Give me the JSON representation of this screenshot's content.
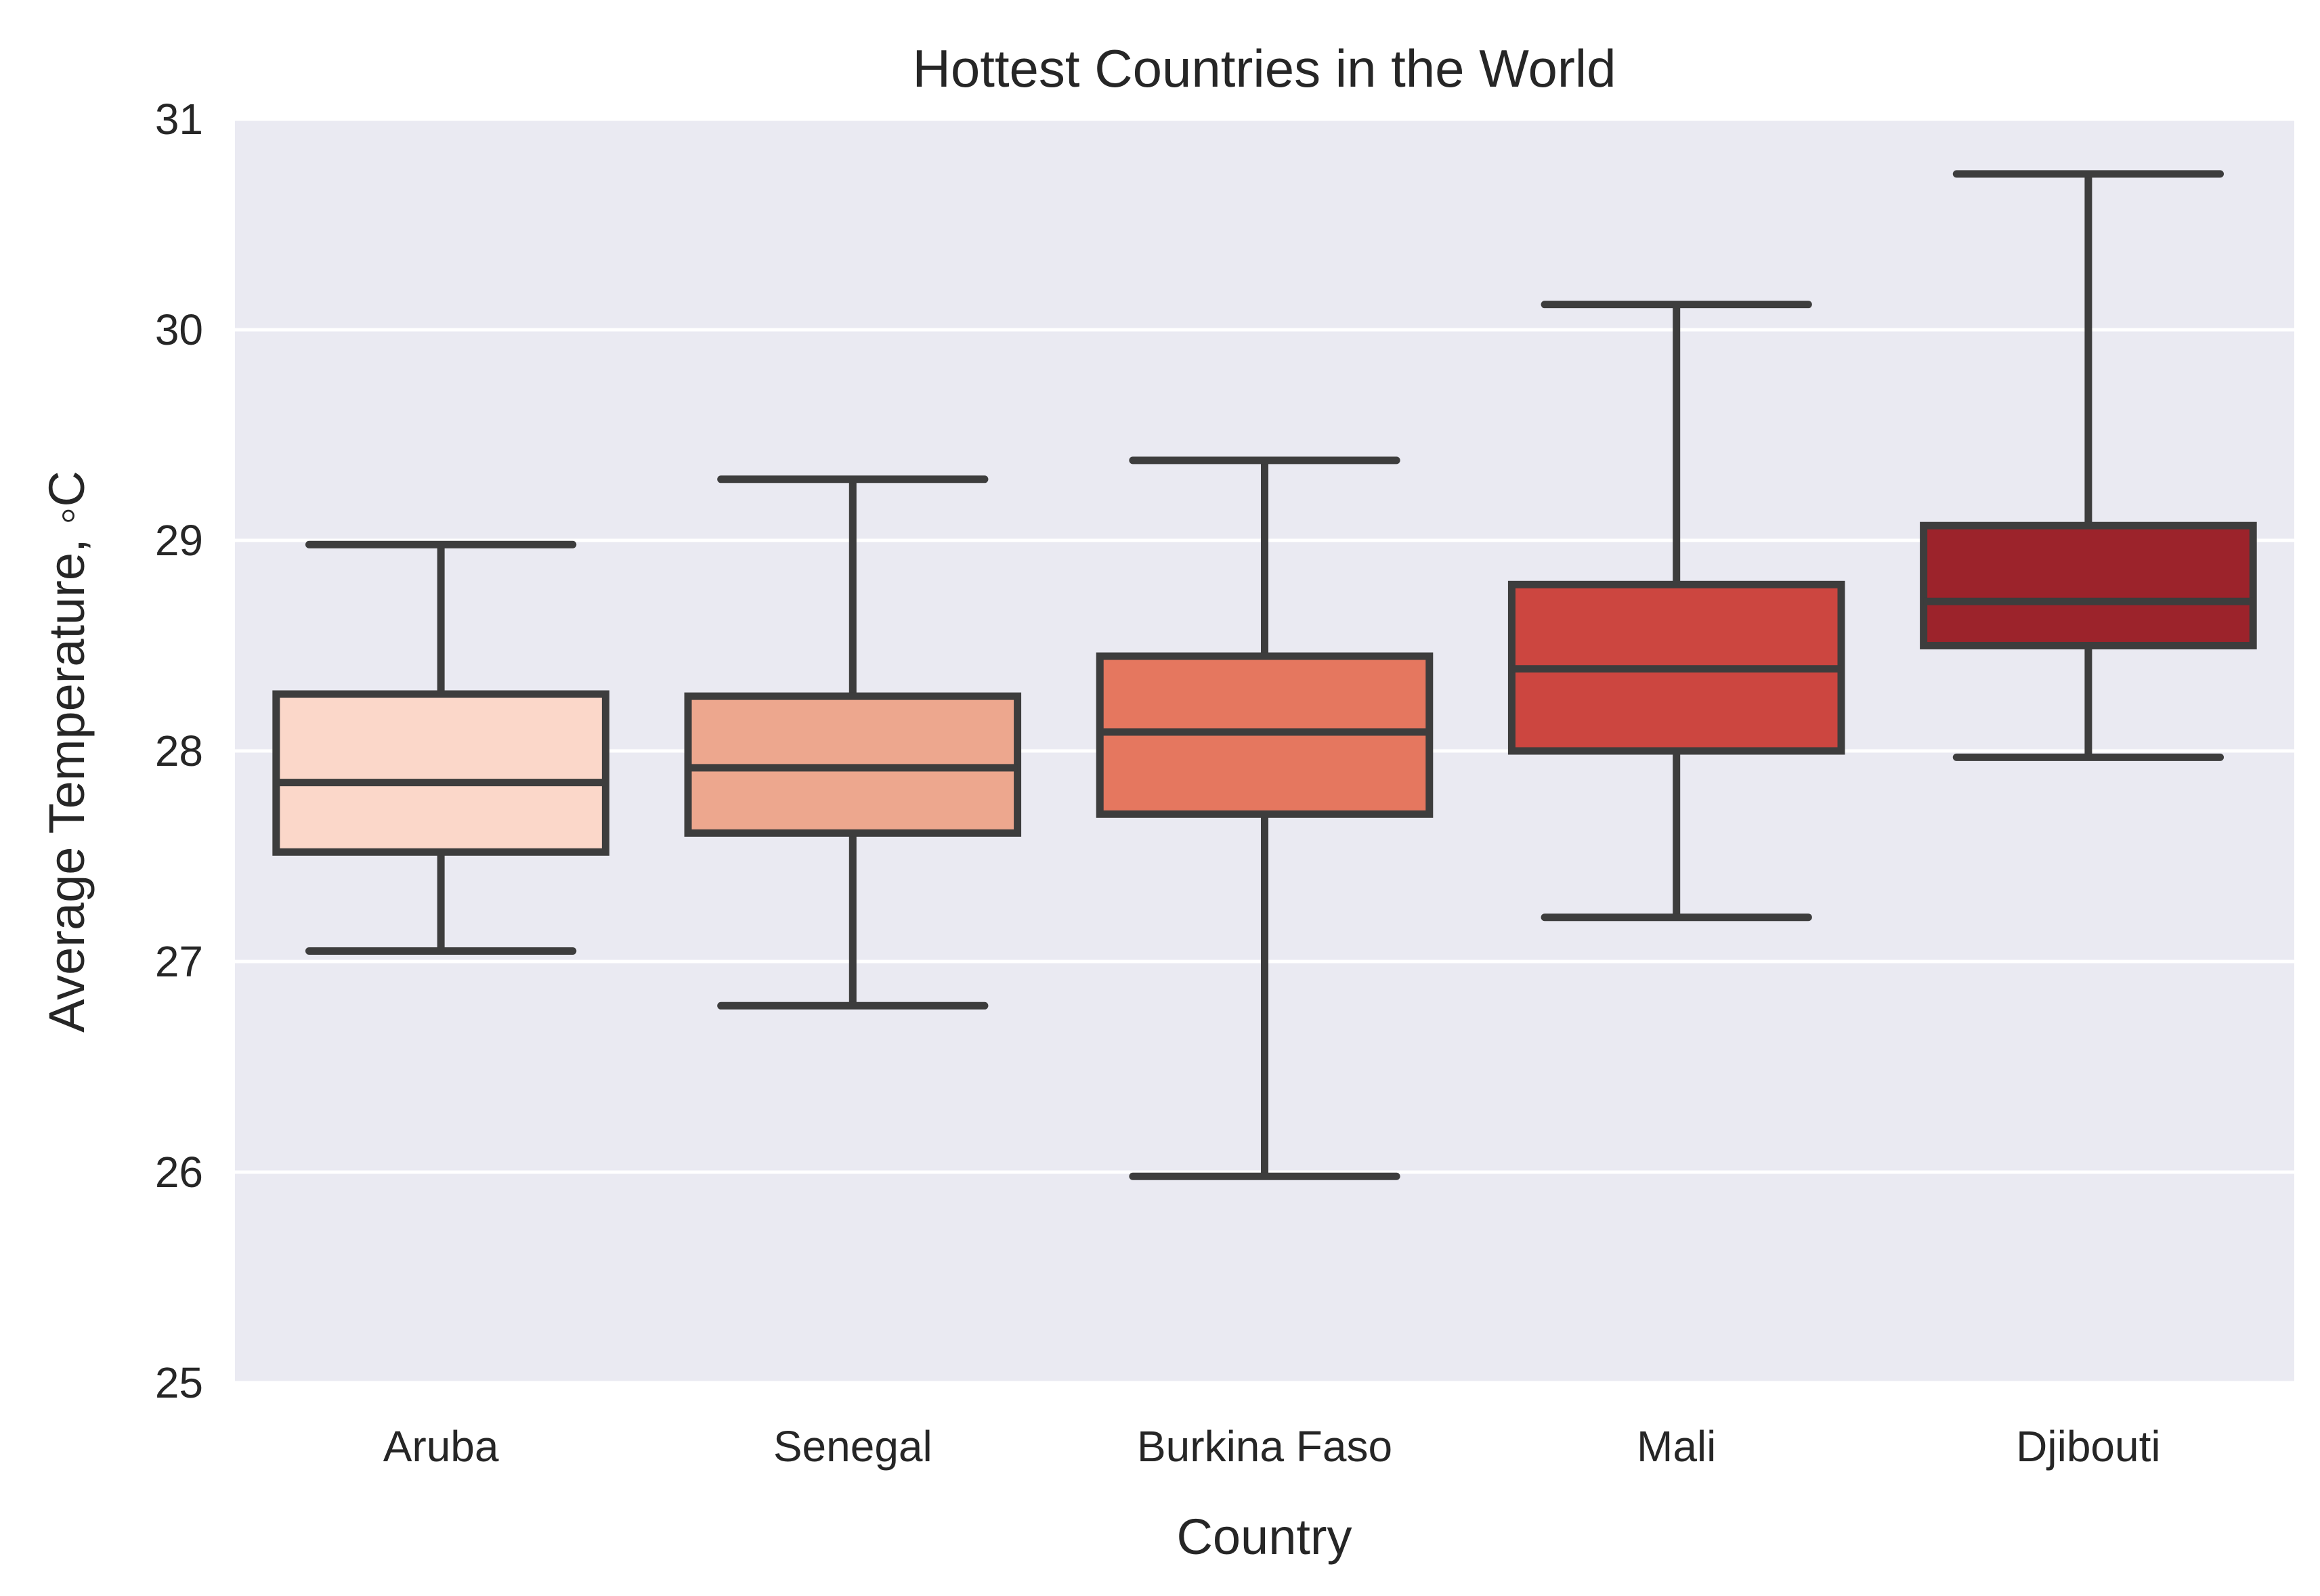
{
  "chart_data": {
    "type": "box",
    "title": "Hottest Countries in the World",
    "xlabel": "Country",
    "ylabel": "Average Temperature,  ◦C",
    "ylim": [
      25,
      31
    ],
    "yticks": [
      "25",
      "26",
      "27",
      "28",
      "29",
      "30",
      "31"
    ],
    "grid": true,
    "categories": [
      "Aruba",
      "Senegal",
      "Burkina Faso",
      "Mali",
      "Djibouti"
    ],
    "boxes": [
      {
        "category": "Aruba",
        "whisker_low": 27.05,
        "q1": 27.52,
        "median": 27.85,
        "q3": 28.27,
        "whisker_high": 28.98,
        "color": "#fbd7c9"
      },
      {
        "category": "Senegal",
        "whisker_low": 26.79,
        "q1": 27.61,
        "median": 27.92,
        "q3": 28.26,
        "whisker_high": 29.29,
        "color": "#eda78e"
      },
      {
        "category": "Burkina Faso",
        "whisker_low": 25.98,
        "q1": 27.7,
        "median": 28.09,
        "q3": 28.45,
        "whisker_high": 29.38,
        "color": "#e5775f"
      },
      {
        "category": "Mali",
        "whisker_low": 27.21,
        "q1": 28.0,
        "median": 28.39,
        "q3": 28.79,
        "whisker_high": 30.12,
        "color": "#cc4640"
      },
      {
        "category": "Djibouti",
        "whisker_low": 27.97,
        "q1": 28.5,
        "median": 28.71,
        "q3": 29.07,
        "whisker_high": 30.74,
        "color": "#9c232b"
      }
    ],
    "colors": {
      "plot_background": "#eaeaf2",
      "grid": "#ffffff",
      "box_edge": "#3d3d3d"
    }
  }
}
